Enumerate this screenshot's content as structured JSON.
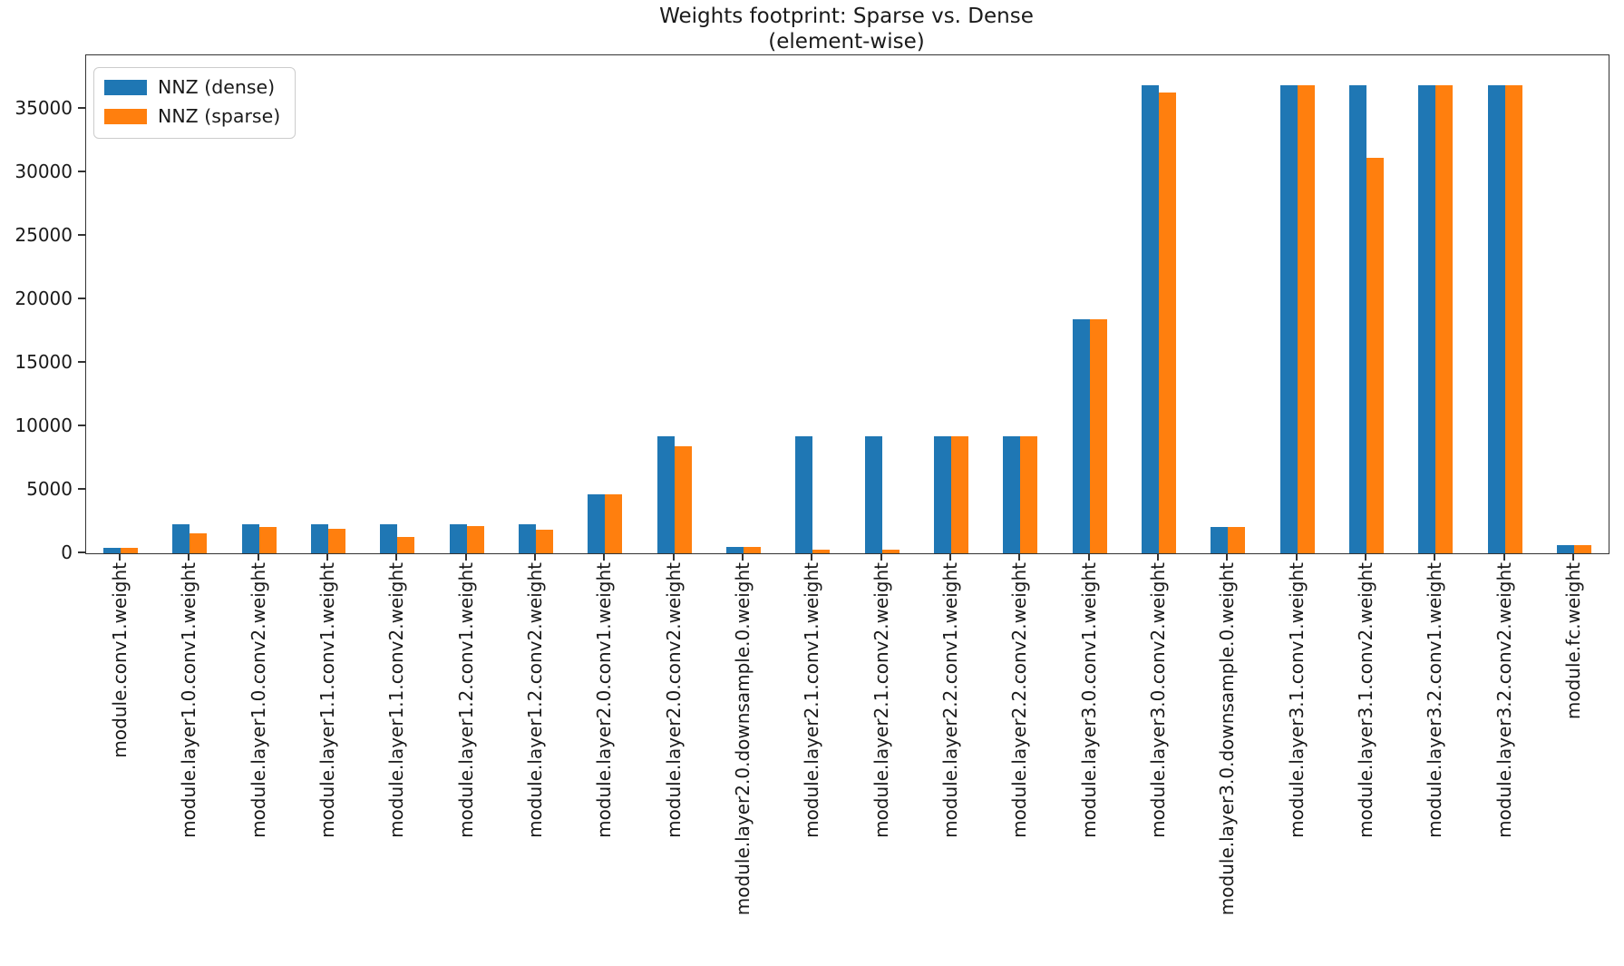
{
  "chart_data": {
    "type": "bar",
    "title": "Weights footprint: Sparse vs. Dense",
    "subtitle": "(element-wise)",
    "xlabel": "",
    "ylabel": "",
    "grid": false,
    "legend_position": "upper left",
    "ylim": [
      0,
      39200
    ],
    "yticks": [
      0,
      5000,
      10000,
      15000,
      20000,
      25000,
      30000,
      35000
    ],
    "categories": [
      "module.conv1.weight",
      "module.layer1.0.conv1.weight",
      "module.layer1.0.conv2.weight",
      "module.layer1.1.conv1.weight",
      "module.layer1.1.conv2.weight",
      "module.layer1.2.conv1.weight",
      "module.layer1.2.conv2.weight",
      "module.layer2.0.conv1.weight",
      "module.layer2.0.conv2.weight",
      "module.layer2.0.downsample.0.weight",
      "module.layer2.1.conv1.weight",
      "module.layer2.1.conv2.weight",
      "module.layer2.2.conv1.weight",
      "module.layer2.2.conv2.weight",
      "module.layer3.0.conv1.weight",
      "module.layer3.0.conv2.weight",
      "module.layer3.0.downsample.0.weight",
      "module.layer3.1.conv1.weight",
      "module.layer3.1.conv2.weight",
      "module.layer3.2.conv1.weight",
      "module.layer3.2.conv2.weight",
      "module.fc.weight"
    ],
    "series": [
      {
        "name": "NNZ (dense)",
        "color": "#1f77b4",
        "values": [
          432,
          2304,
          2304,
          2304,
          2304,
          2304,
          2304,
          4608,
          9216,
          512,
          9216,
          9216,
          9216,
          9216,
          18432,
          36864,
          2048,
          36864,
          36864,
          36864,
          36864,
          640
        ]
      },
      {
        "name": "NNZ (sparse)",
        "color": "#ff7f0e",
        "values": [
          432,
          1600,
          2050,
          1900,
          1300,
          2150,
          1850,
          4608,
          8400,
          512,
          300,
          300,
          9216,
          9216,
          18432,
          36300,
          2048,
          36864,
          31100,
          36864,
          36864,
          640
        ]
      }
    ]
  }
}
